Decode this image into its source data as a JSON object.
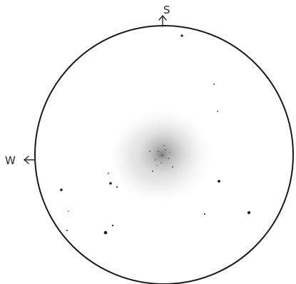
{
  "sketch": {
    "direction_labels": {
      "top": "S",
      "left": "W"
    },
    "colors": {
      "background": "#ffffff",
      "ink": "#1a1a1a",
      "nebula": "#9a9a9a"
    }
  }
}
